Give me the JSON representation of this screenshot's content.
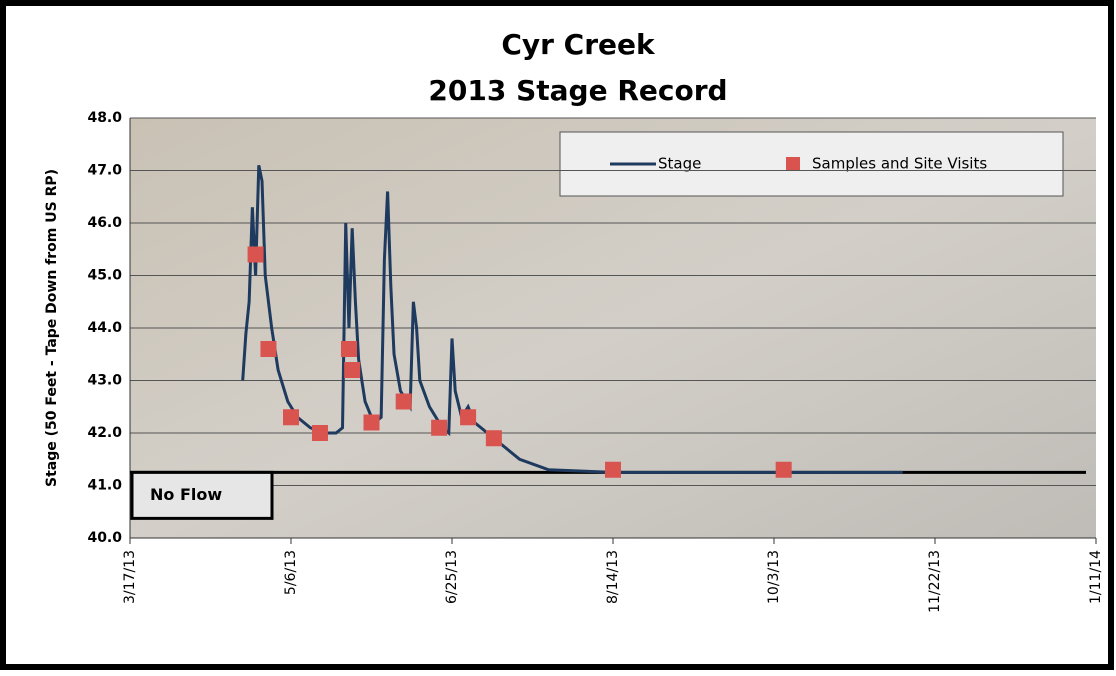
{
  "chart_data": {
    "type": "line",
    "title": [
      "Cyr Creek",
      "2013 Stage Record"
    ],
    "y_label": "Stage (50 Feet - Tape Down from US RP)",
    "series": [
      {
        "name": "Stage",
        "color": "#1f3a5f",
        "kind": "line",
        "x": [
          "2013-04-21",
          "2013-04-22",
          "2013-04-23",
          "2013-04-24",
          "2013-04-25",
          "2013-04-26",
          "2013-04-27",
          "2013-04-28",
          "2013-04-30",
          "2013-05-02",
          "2013-05-05",
          "2013-05-08",
          "2013-05-12",
          "2013-05-16",
          "2013-05-20",
          "2013-05-22",
          "2013-05-23",
          "2013-05-24",
          "2013-05-25",
          "2013-05-26",
          "2013-05-27",
          "2013-05-29",
          "2013-05-31",
          "2013-06-01",
          "2013-06-03",
          "2013-06-04",
          "2013-06-05",
          "2013-06-06",
          "2013-06-07",
          "2013-06-09",
          "2013-06-12",
          "2013-06-13",
          "2013-06-14",
          "2013-06-15",
          "2013-06-18",
          "2013-06-22",
          "2013-06-24",
          "2013-06-25",
          "2013-06-26",
          "2013-06-28",
          "2013-06-30",
          "2013-07-02",
          "2013-07-06",
          "2013-07-10",
          "2013-07-16",
          "2013-07-25",
          "2013-08-14",
          "2013-09-30",
          "2013-11-12"
        ],
        "values": [
          43.0,
          43.9,
          44.5,
          46.3,
          45.0,
          47.1,
          46.8,
          45.0,
          44.0,
          43.2,
          42.6,
          42.3,
          42.1,
          42.0,
          42.0,
          42.1,
          46.0,
          44.0,
          45.9,
          44.5,
          43.4,
          42.6,
          42.3,
          42.2,
          42.3,
          45.3,
          46.6,
          44.8,
          43.5,
          42.8,
          42.5,
          44.5,
          44.0,
          43.0,
          42.5,
          42.1,
          42.0,
          43.8,
          42.8,
          42.3,
          42.5,
          42.2,
          42.0,
          41.8,
          41.5,
          41.3,
          41.25,
          41.25,
          41.25
        ]
      },
      {
        "name": "Samples and Site Visits",
        "color": "#d9534f",
        "kind": "scatter",
        "x": [
          "2013-04-25",
          "2013-04-29",
          "2013-05-06",
          "2013-05-15",
          "2013-05-24",
          "2013-05-25",
          "2013-05-31",
          "2013-06-10",
          "2013-06-21",
          "2013-06-30",
          "2013-07-08",
          "2013-08-14",
          "2013-10-06"
        ],
        "values": [
          45.4,
          43.6,
          42.3,
          42.0,
          43.6,
          43.2,
          42.2,
          42.6,
          42.1,
          42.3,
          41.9,
          41.3,
          41.3
        ]
      }
    ],
    "reference_line": {
      "value": 41.25,
      "label": "No Flow"
    },
    "xlim": [
      "2013-03-17",
      "2014-01-11"
    ],
    "xticks": [
      {
        "value": "2013-03-17",
        "label": "3/17/13"
      },
      {
        "value": "2013-05-06",
        "label": "5/6/13"
      },
      {
        "value": "2013-06-25",
        "label": "6/25/13"
      },
      {
        "value": "2013-08-14",
        "label": "8/14/13"
      },
      {
        "value": "2013-10-03",
        "label": "10/3/13"
      },
      {
        "value": "2013-11-22",
        "label": "11/22/13"
      },
      {
        "value": "2014-01-11",
        "label": "1/11/14"
      }
    ],
    "ylim": [
      40,
      48
    ],
    "yticks": [
      {
        "value": 40,
        "label": "40.0"
      },
      {
        "value": 41,
        "label": "41.0"
      },
      {
        "value": 42,
        "label": "42.0"
      },
      {
        "value": 43,
        "label": "43.0"
      },
      {
        "value": 44,
        "label": "44.0"
      },
      {
        "value": 45,
        "label": "45.0"
      },
      {
        "value": 46,
        "label": "46.0"
      },
      {
        "value": 47,
        "label": "47.0"
      },
      {
        "value": 48,
        "label": "48.0"
      }
    ],
    "grid": true,
    "legend": "top-right"
  }
}
